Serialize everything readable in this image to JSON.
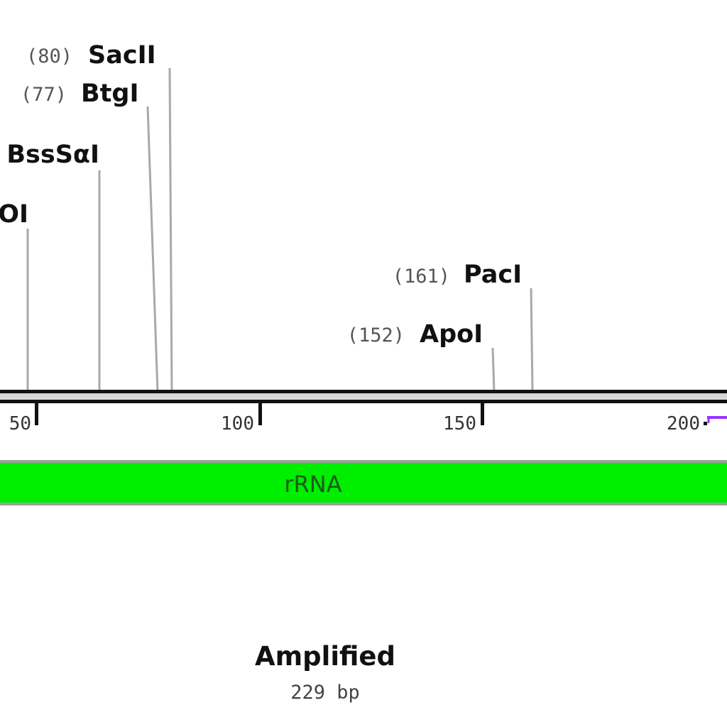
{
  "map": {
    "title": "Amplified",
    "length_label": "229 bp"
  },
  "sites": [
    {
      "key": "saci",
      "pos_label": "(80)",
      "name": "SacII",
      "position": 80
    },
    {
      "key": "btgi",
      "pos_label": "(77)",
      "name": "BtgI",
      "position": 77
    },
    {
      "key": "bsssai",
      "pos_label": "",
      "name": "BssSαI",
      "position": 65
    },
    {
      "key": "partial",
      "pos_label": "",
      "name": "OI",
      "position": 49
    },
    {
      "key": "paci",
      "pos_label": "(161)",
      "name": "PacI",
      "position": 161
    },
    {
      "key": "apoi",
      "pos_label": "(152)",
      "name": "ApoI",
      "position": 152
    }
  ],
  "ticks": [
    {
      "label": "50",
      "position": 50
    },
    {
      "label": "100",
      "position": 100
    },
    {
      "label": "150",
      "position": 150
    },
    {
      "label": "200",
      "position": 200
    }
  ],
  "feature": {
    "label": "rRNA",
    "color": "#00ee00"
  },
  "colors": {
    "backbone": "#111111",
    "site_line": "#a9a9a9",
    "primer": "#9933ff"
  }
}
